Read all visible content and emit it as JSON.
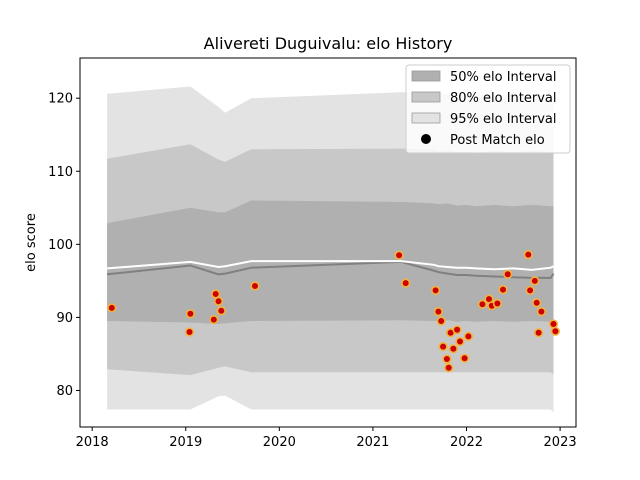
{
  "chart_data": {
    "type": "line",
    "title": "Alivereti Duguivalu: elo History",
    "xlabel": "",
    "ylabel": "elo score",
    "xlim": [
      2017.87,
      2023.17
    ],
    "ylim": [
      75.0,
      125.5
    ],
    "x_ticks": [
      2018,
      2019,
      2020,
      2021,
      2022,
      2023
    ],
    "y_ticks": [
      80,
      90,
      100,
      110,
      120
    ],
    "grid": false,
    "legend_position": "top-right",
    "legend": [
      {
        "label": "50% elo Interval",
        "kind": "band",
        "color": "#b0b0b0"
      },
      {
        "label": "80% elo Interval",
        "kind": "band",
        "color": "#c8c8c8"
      },
      {
        "label": "95% elo Interval",
        "kind": "band",
        "color": "#e3e3e3"
      },
      {
        "label": "Post Match elo",
        "kind": "marker",
        "color": "#000000"
      }
    ],
    "bands": {
      "x": [
        2018.16,
        2019.05,
        2019.35,
        2019.42,
        2019.7,
        2021.3,
        2021.65,
        2021.7,
        2021.8,
        2021.9,
        2022.0,
        2022.1,
        2022.3,
        2022.5,
        2022.7,
        2022.9,
        2022.93
      ],
      "p95_upper": [
        120.6,
        121.6,
        118.8,
        118.0,
        120.0,
        120.8,
        120.6,
        120.4,
        120.6,
        120.2,
        120.4,
        120.2,
        120.5,
        120.4,
        120.5,
        120.3,
        120.3
      ],
      "p95_lower": [
        77.4,
        77.4,
        79.2,
        79.3,
        77.4,
        77.4,
        77.4,
        77.4,
        77.4,
        77.4,
        77.4,
        77.4,
        77.4,
        77.4,
        77.4,
        77.4,
        77.0
      ],
      "p80_upper": [
        111.7,
        113.7,
        111.6,
        111.3,
        113.0,
        113.1,
        113.0,
        112.8,
        112.9,
        112.6,
        112.7,
        112.5,
        112.8,
        112.6,
        112.8,
        112.6,
        112.6
      ],
      "p80_lower": [
        82.9,
        82.1,
        83.1,
        83.3,
        82.5,
        82.5,
        82.5,
        82.5,
        82.5,
        82.5,
        82.5,
        82.5,
        82.5,
        82.5,
        82.5,
        82.5,
        82.2
      ],
      "p50_upper": [
        102.9,
        105.0,
        104.4,
        104.4,
        106.0,
        105.8,
        105.6,
        105.5,
        105.6,
        105.3,
        105.4,
        105.2,
        105.4,
        105.2,
        105.4,
        105.2,
        105.2
      ],
      "p50_lower": [
        89.5,
        89.3,
        89.1,
        89.2,
        89.5,
        89.6,
        89.5,
        89.5,
        89.6,
        89.4,
        89.5,
        89.4,
        89.5,
        89.4,
        89.5,
        89.4,
        89.3
      ]
    },
    "median_line": {
      "color": "#808080",
      "x": [
        2018.16,
        2019.05,
        2019.35,
        2019.42,
        2019.7,
        2021.3,
        2021.65,
        2021.7,
        2021.8,
        2021.9,
        2022.0,
        2022.1,
        2022.3,
        2022.5,
        2022.7,
        2022.9,
        2022.93
      ],
      "y": [
        95.9,
        97.1,
        95.9,
        96.0,
        96.8,
        97.6,
        96.4,
        96.2,
        96.0,
        95.8,
        95.8,
        95.7,
        95.6,
        95.5,
        95.4,
        95.4,
        96.0
      ]
    },
    "mean_line": {
      "color": "#ffffff",
      "x": [
        2018.16,
        2019.05,
        2019.35,
        2019.42,
        2019.7,
        2021.3,
        2021.65,
        2021.7,
        2021.8,
        2021.9,
        2022.0,
        2022.1,
        2022.3,
        2022.5,
        2022.7,
        2022.9,
        2022.93
      ],
      "y": [
        96.7,
        97.6,
        96.9,
        97.0,
        97.7,
        97.7,
        97.2,
        97.0,
        96.9,
        96.8,
        96.8,
        96.7,
        96.6,
        96.7,
        96.5,
        96.8,
        97.0
      ]
    },
    "points": {
      "fill": "#cc0000",
      "edge": "#f2b33d",
      "values": [
        {
          "x": 2018.21,
          "y": 91.3
        },
        {
          "x": 2019.04,
          "y": 88.0
        },
        {
          "x": 2019.05,
          "y": 90.5
        },
        {
          "x": 2019.3,
          "y": 89.7
        },
        {
          "x": 2019.32,
          "y": 93.2
        },
        {
          "x": 2019.35,
          "y": 92.2
        },
        {
          "x": 2019.38,
          "y": 90.9
        },
        {
          "x": 2019.74,
          "y": 94.3
        },
        {
          "x": 2021.28,
          "y": 98.5
        },
        {
          "x": 2021.35,
          "y": 94.7
        },
        {
          "x": 2021.67,
          "y": 93.7
        },
        {
          "x": 2021.7,
          "y": 90.8
        },
        {
          "x": 2021.73,
          "y": 89.5
        },
        {
          "x": 2021.75,
          "y": 86.0
        },
        {
          "x": 2021.79,
          "y": 84.3
        },
        {
          "x": 2021.81,
          "y": 83.1
        },
        {
          "x": 2021.83,
          "y": 87.9
        },
        {
          "x": 2021.86,
          "y": 85.7
        },
        {
          "x": 2021.9,
          "y": 88.3
        },
        {
          "x": 2021.93,
          "y": 86.7
        },
        {
          "x": 2021.98,
          "y": 84.4
        },
        {
          "x": 2022.02,
          "y": 87.4
        },
        {
          "x": 2022.17,
          "y": 91.8
        },
        {
          "x": 2022.24,
          "y": 92.5
        },
        {
          "x": 2022.27,
          "y": 91.6
        },
        {
          "x": 2022.33,
          "y": 91.9
        },
        {
          "x": 2022.39,
          "y": 93.8
        },
        {
          "x": 2022.44,
          "y": 95.9
        },
        {
          "x": 2022.66,
          "y": 98.6
        },
        {
          "x": 2022.68,
          "y": 93.7
        },
        {
          "x": 2022.73,
          "y": 95.0
        },
        {
          "x": 2022.75,
          "y": 92.0
        },
        {
          "x": 2022.77,
          "y": 87.9
        },
        {
          "x": 2022.8,
          "y": 90.8
        },
        {
          "x": 2022.93,
          "y": 89.1
        },
        {
          "x": 2022.95,
          "y": 88.1
        }
      ]
    }
  }
}
